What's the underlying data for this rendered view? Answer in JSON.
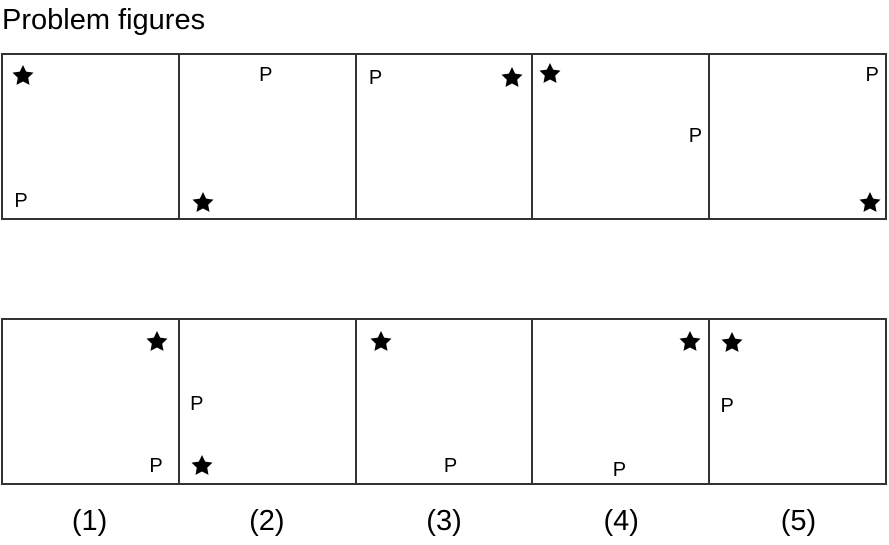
{
  "title": "Problem figures",
  "colors": {
    "line": "#333333",
    "mark": "#000000",
    "background": "#ffffff"
  },
  "icons": {
    "star": "star-icon"
  },
  "problem_figures": [
    {
      "letter": "P",
      "star": "star"
    },
    {
      "letter": "P",
      "star": "star"
    },
    {
      "letter": "P",
      "star": "star"
    },
    {
      "letter": "P",
      "star": "star"
    },
    {
      "letter": "P",
      "star": "star"
    }
  ],
  "answer_figures": [
    {
      "letter": "P",
      "star": "star"
    },
    {
      "letter": "P",
      "star": "star"
    },
    {
      "letter": "P",
      "star": "star"
    },
    {
      "letter": "P",
      "star": "star"
    },
    {
      "letter": "P",
      "star": "star"
    }
  ],
  "answer_labels": [
    "(1)",
    "(2)",
    "(3)",
    "(4)",
    "(5)"
  ]
}
